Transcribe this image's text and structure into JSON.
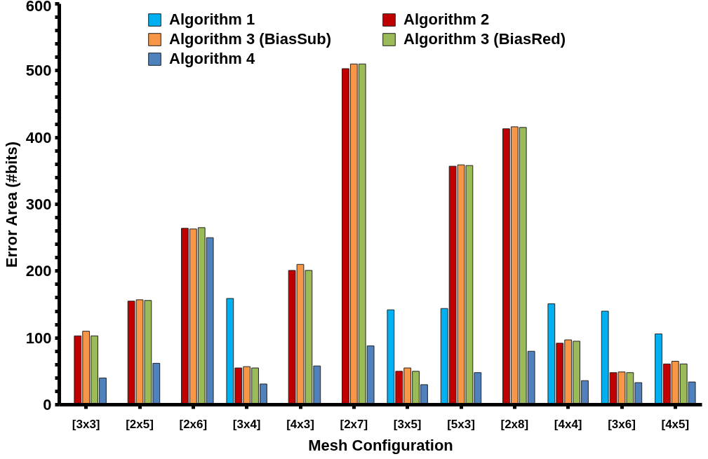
{
  "chart_data": {
    "type": "bar",
    "xlabel": "Mesh Configuration",
    "ylabel": "Error Area (#bits)",
    "categories": [
      "[3x3]",
      "[2x5]",
      "[2x6]",
      "[3x4]",
      "[4x3]",
      "[2x7]",
      "[3x5]",
      "[5x3]",
      "[2x8]",
      "[4x4]",
      "[3x6]",
      "[4x5]"
    ],
    "series": [
      {
        "name": "Algorithm 1",
        "color": "#00b0f0",
        "values": [
          null,
          null,
          null,
          159,
          null,
          null,
          142,
          144,
          null,
          151,
          140,
          106
        ]
      },
      {
        "name": "Algorithm 2",
        "color": "#c00000",
        "values": [
          103,
          155,
          264,
          55,
          201,
          503,
          50,
          357,
          413,
          92,
          48,
          61
        ]
      },
      {
        "name": "Algorithm 3 (BiasSub)",
        "color": "#f79646",
        "values": [
          110,
          157,
          263,
          57,
          210,
          510,
          55,
          359,
          416,
          97,
          49,
          65
        ]
      },
      {
        "name": "Algorithm 3 (BiasRed)",
        "color": "#9bbb59",
        "values": [
          103,
          156,
          265,
          55,
          201,
          510,
          50,
          358,
          415,
          95,
          48,
          61
        ]
      },
      {
        "name": "Algorithm 4",
        "color": "#4f81bd",
        "values": [
          40,
          62,
          250,
          31,
          58,
          88,
          30,
          48,
          80,
          36,
          33,
          34
        ]
      }
    ],
    "ylim": [
      0,
      600
    ],
    "yticks": [
      0,
      {
        "value": 20,
        "label": null
      },
      {
        "value": 40,
        "label": null
      },
      {
        "value": 60,
        "label": null
      },
      {
        "value": 80,
        "label": null
      },
      100,
      {
        "value": 120,
        "label": null
      },
      {
        "value": 140,
        "label": null
      },
      {
        "value": 160,
        "label": null
      },
      {
        "value": 180,
        "label": null
      },
      200,
      {
        "value": 220,
        "label": null
      },
      {
        "value": 240,
        "label": null
      },
      {
        "value": 260,
        "label": null
      },
      {
        "value": 280,
        "label": null
      },
      300,
      {
        "value": 320,
        "label": null
      },
      {
        "value": 340,
        "label": null
      },
      {
        "value": 360,
        "label": null
      },
      {
        "value": 380,
        "label": null
      },
      400,
      {
        "value": 420,
        "label": null
      },
      {
        "value": 440,
        "label": null
      },
      {
        "value": 460,
        "label": null
      },
      {
        "value": 480,
        "label": null
      },
      500,
      {
        "value": 520,
        "label": null
      },
      {
        "value": 540,
        "label": null
      },
      {
        "value": 560,
        "label": null
      },
      {
        "value": 580,
        "label": null
      },
      600
    ],
    "grid": false,
    "legend": "top"
  }
}
